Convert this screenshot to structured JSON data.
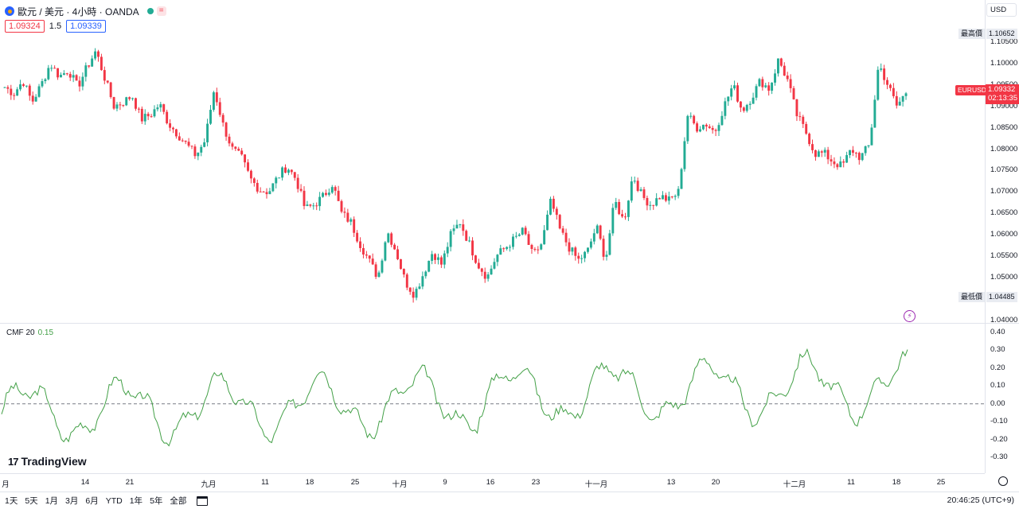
{
  "header": {
    "title": "歐元 / 美元 · 4小時 · OANDA",
    "eq_badge": "=",
    "bid": "1.09324",
    "spread": "1.5",
    "ask": "1.09339"
  },
  "price_axis": {
    "currency": "USD",
    "ticks": [
      "1.10500",
      "1.10000",
      "1.09500",
      "1.09000",
      "1.08500",
      "1.08000",
      "1.07500",
      "1.07000",
      "1.06500",
      "1.06000",
      "1.05500",
      "1.05000",
      "1.04000"
    ],
    "tick_values": [
      1.105,
      1.1,
      1.095,
      1.09,
      1.085,
      1.08,
      1.075,
      1.07,
      1.065,
      1.06,
      1.055,
      1.05,
      1.04
    ],
    "high_label": "最高價",
    "high_value": "1.10652",
    "low_label": "最低價",
    "low_value": "1.04485",
    "current_symbol": "EURUSD",
    "current_price": "1.09332",
    "countdown": "02:13:35"
  },
  "cmf": {
    "label": "CMF 20",
    "value": "0.15",
    "ticks": [
      "0.40",
      "0.30",
      "0.20",
      "0.10",
      "0.00",
      "-0.10",
      "-0.20",
      "-0.30"
    ]
  },
  "time_axis": {
    "labels": [
      "月",
      "14",
      "21",
      "九月",
      "11",
      "18",
      "25",
      "十月",
      "9",
      "16",
      "23",
      "十一月",
      "13",
      "20",
      "十二月",
      "11",
      "18",
      "25"
    ]
  },
  "bottom_bar": {
    "ranges": [
      "1天",
      "5天",
      "1月",
      "3月",
      "6月",
      "YTD",
      "1年",
      "5年",
      "全部"
    ],
    "clock": "20:46:25 (UTC+9)"
  },
  "branding": {
    "logo_text": "TradingView",
    "logo_mark": "17"
  },
  "colors": {
    "up": "#22ab94",
    "down": "#f23645",
    "cmf_line": "#43a047",
    "accent": "#2962ff"
  },
  "chart_data": {
    "type": "candlestick",
    "symbol": "EURUSD",
    "interval": "4小時",
    "ylim": [
      1.04,
      1.108
    ],
    "close_path": [
      1.0945,
      1.093,
      1.096,
      1.091,
      1.095,
      1.1,
      1.097,
      1.0985,
      1.0945,
      1.099,
      1.103,
      1.0965,
      1.09,
      1.091,
      1.0925,
      1.087,
      1.088,
      1.0905,
      1.086,
      1.0835,
      1.081,
      1.0785,
      1.082,
      1.094,
      1.0855,
      1.08,
      1.078,
      1.073,
      1.0705,
      1.07,
      1.0735,
      1.076,
      1.073,
      1.066,
      1.067,
      1.069,
      1.072,
      1.065,
      1.063,
      1.058,
      1.054,
      1.05,
      1.061,
      1.056,
      1.049,
      1.046,
      1.051,
      1.056,
      1.053,
      1.06,
      1.063,
      1.058,
      1.053,
      1.05,
      1.055,
      1.057,
      1.059,
      1.061,
      1.055,
      1.058,
      1.068,
      1.061,
      1.057,
      1.054,
      1.056,
      1.062,
      1.054,
      1.068,
      1.063,
      1.074,
      1.069,
      1.067,
      1.069,
      1.068,
      1.07,
      1.088,
      1.085,
      1.086,
      1.084,
      1.09,
      1.095,
      1.089,
      1.092,
      1.096,
      1.094,
      1.101,
      1.096,
      1.088,
      1.084,
      1.079,
      1.079,
      1.077,
      1.076,
      1.08,
      1.078,
      1.081,
      1.1,
      1.095,
      1.09,
      1.0933
    ]
  }
}
